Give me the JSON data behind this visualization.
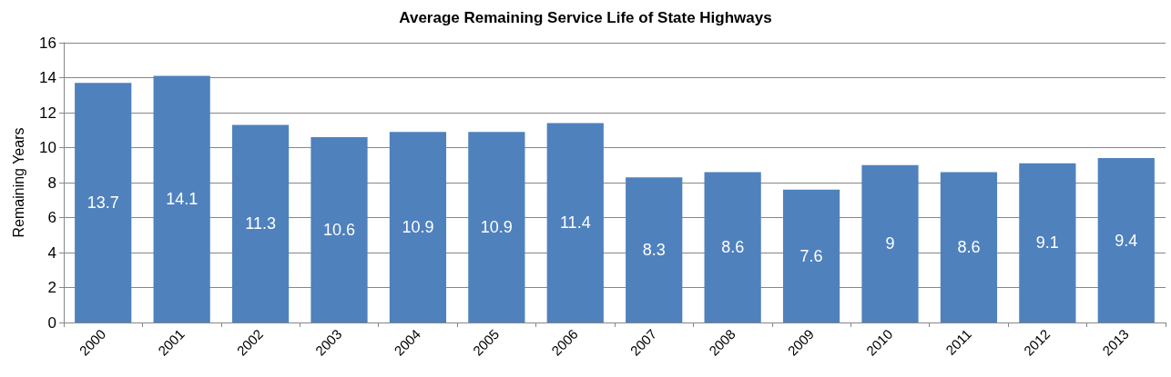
{
  "chart_data": {
    "type": "bar",
    "title": "Average Remaining Service Life of State Highways",
    "ylabel": "Remaining Years",
    "categories": [
      "2000",
      "2001",
      "2002",
      "2003",
      "2004",
      "2005",
      "2006",
      "2007",
      "2008",
      "2009",
      "2010",
      "2011",
      "2012",
      "2013"
    ],
    "values": [
      13.7,
      14.1,
      11.3,
      10.6,
      10.9,
      10.9,
      11.4,
      8.3,
      8.6,
      7.6,
      9,
      8.6,
      9.1,
      9.4
    ],
    "color": "#4f81bd",
    "ylim": [
      0,
      16
    ],
    "yticks": [
      0,
      2,
      4,
      6,
      8,
      10,
      12,
      14,
      16
    ],
    "grid": "y",
    "data_labels": true
  }
}
